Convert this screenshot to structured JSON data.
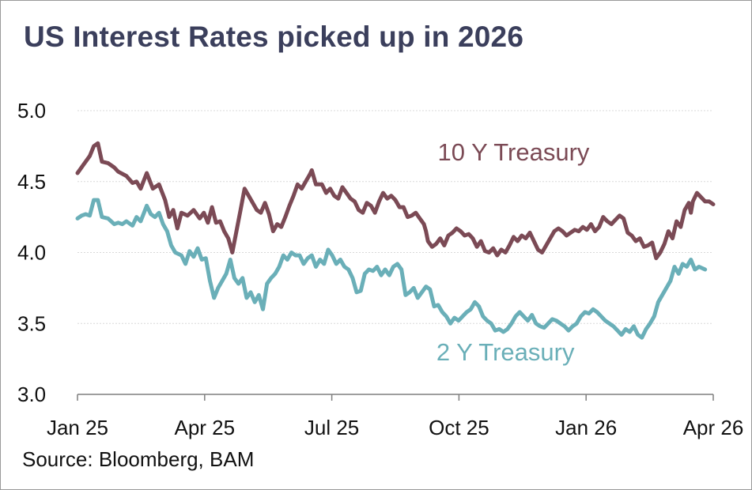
{
  "title": "US Interest Rates picked up in 2026",
  "source": "Source: Bloomberg, BAM",
  "chart_data": {
    "type": "line",
    "title": "US Interest Rates picked up in 2026",
    "xlabel": "",
    "ylabel": "",
    "ylim": [
      3.0,
      5.0
    ],
    "yticks": [
      "3.0",
      "3.5",
      "4.0",
      "4.5",
      "5.0"
    ],
    "xlim": [
      0,
      15
    ],
    "xticks": [
      {
        "label": "Jan 25",
        "x": 0
      },
      {
        "label": "Apr 25",
        "x": 3
      },
      {
        "label": "Jul 25",
        "x": 6
      },
      {
        "label": "Oct 25",
        "x": 9
      },
      {
        "label": "Jan 26",
        "x": 12
      },
      {
        "label": "Apr 26",
        "x": 15
      }
    ],
    "grid": true,
    "series": [
      {
        "name": "10 Y Treasury",
        "color": "#7b4a55",
        "points": [
          [
            0.0,
            4.56
          ],
          [
            0.15,
            4.62
          ],
          [
            0.3,
            4.68
          ],
          [
            0.4,
            4.75
          ],
          [
            0.5,
            4.77
          ],
          [
            0.6,
            4.64
          ],
          [
            0.75,
            4.63
          ],
          [
            0.9,
            4.6
          ],
          [
            1.0,
            4.57
          ],
          [
            1.2,
            4.54
          ],
          [
            1.35,
            4.49
          ],
          [
            1.45,
            4.5
          ],
          [
            1.55,
            4.45
          ],
          [
            1.7,
            4.56
          ],
          [
            1.85,
            4.45
          ],
          [
            2.0,
            4.48
          ],
          [
            2.15,
            4.37
          ],
          [
            2.25,
            4.25
          ],
          [
            2.35,
            4.3
          ],
          [
            2.45,
            4.17
          ],
          [
            2.55,
            4.28
          ],
          [
            2.7,
            4.26
          ],
          [
            2.85,
            4.3
          ],
          [
            3.0,
            4.24
          ],
          [
            3.1,
            4.28
          ],
          [
            3.2,
            4.21
          ],
          [
            3.3,
            4.32
          ],
          [
            3.4,
            4.21
          ],
          [
            3.5,
            4.22
          ],
          [
            3.6,
            4.15
          ],
          [
            3.7,
            4.1
          ],
          [
            3.8,
            4.0
          ],
          [
            3.9,
            4.15
          ],
          [
            4.0,
            4.3
          ],
          [
            4.1,
            4.45
          ],
          [
            4.2,
            4.4
          ],
          [
            4.3,
            4.35
          ],
          [
            4.4,
            4.3
          ],
          [
            4.5,
            4.28
          ],
          [
            4.6,
            4.35
          ],
          [
            4.7,
            4.27
          ],
          [
            4.8,
            4.15
          ],
          [
            4.9,
            4.2
          ],
          [
            5.0,
            4.18
          ],
          [
            5.1,
            4.25
          ],
          [
            5.2,
            4.33
          ],
          [
            5.3,
            4.4
          ],
          [
            5.4,
            4.48
          ],
          [
            5.5,
            4.45
          ],
          [
            5.6,
            4.5
          ],
          [
            5.7,
            4.55
          ],
          [
            5.75,
            4.58
          ],
          [
            5.85,
            4.48
          ],
          [
            6.0,
            4.48
          ],
          [
            6.1,
            4.42
          ],
          [
            6.2,
            4.45
          ],
          [
            6.3,
            4.4
          ],
          [
            6.4,
            4.38
          ],
          [
            6.5,
            4.46
          ],
          [
            6.6,
            4.42
          ],
          [
            6.7,
            4.38
          ],
          [
            6.8,
            4.36
          ],
          [
            6.9,
            4.3
          ],
          [
            7.0,
            4.28
          ],
          [
            7.1,
            4.35
          ],
          [
            7.2,
            4.33
          ],
          [
            7.3,
            4.28
          ],
          [
            7.4,
            4.36
          ],
          [
            7.5,
            4.42
          ],
          [
            7.6,
            4.38
          ],
          [
            7.7,
            4.4
          ],
          [
            7.8,
            4.37
          ],
          [
            7.9,
            4.32
          ],
          [
            8.0,
            4.32
          ],
          [
            8.1,
            4.25
          ],
          [
            8.2,
            4.26
          ],
          [
            8.3,
            4.28
          ],
          [
            8.4,
            4.24
          ],
          [
            8.5,
            4.2
          ],
          [
            8.55,
            4.15
          ],
          [
            8.6,
            4.08
          ],
          [
            8.7,
            4.04
          ],
          [
            8.8,
            4.06
          ],
          [
            8.9,
            4.1
          ],
          [
            9.0,
            4.05
          ],
          [
            9.1,
            4.12
          ],
          [
            9.2,
            4.14
          ],
          [
            9.3,
            4.17
          ],
          [
            9.4,
            4.15
          ],
          [
            9.5,
            4.12
          ],
          [
            9.6,
            4.13
          ],
          [
            9.7,
            4.1
          ],
          [
            9.8,
            4.04
          ],
          [
            9.9,
            4.08
          ],
          [
            10.0,
            4.01
          ],
          [
            10.1,
            4.0
          ],
          [
            10.2,
            4.03
          ],
          [
            10.3,
            3.98
          ],
          [
            10.4,
            4.02
          ],
          [
            10.5,
            4.0
          ],
          [
            10.6,
            4.05
          ],
          [
            10.7,
            4.11
          ],
          [
            10.8,
            4.08
          ],
          [
            10.9,
            4.12
          ],
          [
            11.0,
            4.1
          ],
          [
            11.1,
            4.14
          ],
          [
            11.2,
            4.08
          ],
          [
            11.3,
            4.02
          ],
          [
            11.4,
            4.0
          ],
          [
            11.5,
            4.05
          ],
          [
            11.6,
            4.1
          ],
          [
            11.7,
            4.15
          ],
          [
            11.8,
            4.17
          ],
          [
            11.9,
            4.15
          ],
          [
            12.0,
            4.12
          ],
          [
            12.1,
            4.14
          ],
          [
            12.2,
            4.16
          ],
          [
            12.3,
            4.15
          ],
          [
            12.4,
            4.18
          ],
          [
            12.5,
            4.16
          ],
          [
            12.6,
            4.2
          ],
          [
            12.7,
            4.15
          ],
          [
            12.8,
            4.18
          ],
          [
            12.9,
            4.25
          ],
          [
            13.0,
            4.22
          ],
          [
            13.1,
            4.2
          ],
          [
            13.2,
            4.23
          ],
          [
            13.3,
            4.26
          ],
          [
            13.4,
            4.24
          ],
          [
            13.5,
            4.14
          ],
          [
            13.6,
            4.12
          ],
          [
            13.7,
            4.08
          ],
          [
            13.8,
            4.1
          ],
          [
            13.9,
            4.04
          ],
          [
            14.0,
            4.05
          ],
          [
            14.1,
            4.07
          ],
          [
            14.2,
            3.96
          ],
          [
            14.3,
            4.0
          ],
          [
            14.4,
            4.06
          ],
          [
            14.5,
            4.15
          ],
          [
            14.6,
            4.1
          ],
          [
            14.7,
            4.22
          ],
          [
            14.8,
            4.18
          ],
          [
            14.9,
            4.3
          ],
          [
            15.0,
            4.35
          ],
          [
            15.05,
            4.28
          ],
          [
            15.1,
            4.36
          ],
          [
            15.2,
            4.42
          ],
          [
            15.3,
            4.39
          ],
          [
            15.4,
            4.36
          ],
          [
            15.5,
            4.36
          ],
          [
            15.6,
            4.34
          ]
        ]
      },
      {
        "name": "2 Y Treasury",
        "color": "#6aafb8",
        "points": [
          [
            0.0,
            4.24
          ],
          [
            0.1,
            4.26
          ],
          [
            0.2,
            4.27
          ],
          [
            0.3,
            4.26
          ],
          [
            0.4,
            4.37
          ],
          [
            0.5,
            4.37
          ],
          [
            0.6,
            4.25
          ],
          [
            0.75,
            4.24
          ],
          [
            0.9,
            4.2
          ],
          [
            1.0,
            4.21
          ],
          [
            1.1,
            4.2
          ],
          [
            1.2,
            4.22
          ],
          [
            1.35,
            4.19
          ],
          [
            1.45,
            4.25
          ],
          [
            1.55,
            4.22
          ],
          [
            1.7,
            4.33
          ],
          [
            1.8,
            4.27
          ],
          [
            1.9,
            4.25
          ],
          [
            2.0,
            4.28
          ],
          [
            2.1,
            4.2
          ],
          [
            2.2,
            4.15
          ],
          [
            2.3,
            4.05
          ],
          [
            2.4,
            4.0
          ],
          [
            2.55,
            3.98
          ],
          [
            2.65,
            3.92
          ],
          [
            2.75,
            4.01
          ],
          [
            2.85,
            3.97
          ],
          [
            2.95,
            4.03
          ],
          [
            3.05,
            3.95
          ],
          [
            3.15,
            3.96
          ],
          [
            3.25,
            3.8
          ],
          [
            3.35,
            3.68
          ],
          [
            3.45,
            3.75
          ],
          [
            3.55,
            3.8
          ],
          [
            3.65,
            3.85
          ],
          [
            3.75,
            3.95
          ],
          [
            3.85,
            3.82
          ],
          [
            3.95,
            3.78
          ],
          [
            4.05,
            3.82
          ],
          [
            4.15,
            3.68
          ],
          [
            4.25,
            3.72
          ],
          [
            4.35,
            3.65
          ],
          [
            4.45,
            3.7
          ],
          [
            4.55,
            3.6
          ],
          [
            4.65,
            3.78
          ],
          [
            4.75,
            3.82
          ],
          [
            4.85,
            3.85
          ],
          [
            4.95,
            3.9
          ],
          [
            5.05,
            3.98
          ],
          [
            5.15,
            3.95
          ],
          [
            5.25,
            4.0
          ],
          [
            5.35,
            3.98
          ],
          [
            5.45,
            3.98
          ],
          [
            5.55,
            3.92
          ],
          [
            5.65,
            3.96
          ],
          [
            5.75,
            3.98
          ],
          [
            5.85,
            3.9
          ],
          [
            5.95,
            3.95
          ],
          [
            6.05,
            3.92
          ],
          [
            6.15,
            4.02
          ],
          [
            6.25,
            3.98
          ],
          [
            6.35,
            3.92
          ],
          [
            6.45,
            3.95
          ],
          [
            6.55,
            3.9
          ],
          [
            6.65,
            3.88
          ],
          [
            6.75,
            3.82
          ],
          [
            6.85,
            3.72
          ],
          [
            6.95,
            3.73
          ],
          [
            7.05,
            3.85
          ],
          [
            7.15,
            3.88
          ],
          [
            7.25,
            3.87
          ],
          [
            7.35,
            3.9
          ],
          [
            7.45,
            3.84
          ],
          [
            7.55,
            3.88
          ],
          [
            7.65,
            3.84
          ],
          [
            7.75,
            3.9
          ],
          [
            7.85,
            3.92
          ],
          [
            7.95,
            3.88
          ],
          [
            8.05,
            3.7
          ],
          [
            8.15,
            3.72
          ],
          [
            8.25,
            3.75
          ],
          [
            8.35,
            3.68
          ],
          [
            8.45,
            3.72
          ],
          [
            8.55,
            3.76
          ],
          [
            8.65,
            3.74
          ],
          [
            8.75,
            3.62
          ],
          [
            8.85,
            3.63
          ],
          [
            8.95,
            3.58
          ],
          [
            9.05,
            3.55
          ],
          [
            9.15,
            3.5
          ],
          [
            9.25,
            3.54
          ],
          [
            9.35,
            3.52
          ],
          [
            9.45,
            3.55
          ],
          [
            9.55,
            3.58
          ],
          [
            9.65,
            3.6
          ],
          [
            9.75,
            3.65
          ],
          [
            9.85,
            3.62
          ],
          [
            9.95,
            3.55
          ],
          [
            10.05,
            3.52
          ],
          [
            10.15,
            3.5
          ],
          [
            10.25,
            3.45
          ],
          [
            10.35,
            3.46
          ],
          [
            10.45,
            3.44
          ],
          [
            10.55,
            3.46
          ],
          [
            10.65,
            3.5
          ],
          [
            10.75,
            3.55
          ],
          [
            10.85,
            3.58
          ],
          [
            10.95,
            3.55
          ],
          [
            11.05,
            3.52
          ],
          [
            11.15,
            3.56
          ],
          [
            11.25,
            3.5
          ],
          [
            11.35,
            3.48
          ],
          [
            11.45,
            3.47
          ],
          [
            11.55,
            3.5
          ],
          [
            11.65,
            3.53
          ],
          [
            11.75,
            3.52
          ],
          [
            11.85,
            3.5
          ],
          [
            11.95,
            3.48
          ],
          [
            12.05,
            3.45
          ],
          [
            12.15,
            3.48
          ],
          [
            12.25,
            3.5
          ],
          [
            12.35,
            3.55
          ],
          [
            12.45,
            3.58
          ],
          [
            12.55,
            3.57
          ],
          [
            12.65,
            3.6
          ],
          [
            12.75,
            3.58
          ],
          [
            12.85,
            3.55
          ],
          [
            12.95,
            3.52
          ],
          [
            13.05,
            3.5
          ],
          [
            13.15,
            3.48
          ],
          [
            13.25,
            3.45
          ],
          [
            13.35,
            3.42
          ],
          [
            13.45,
            3.46
          ],
          [
            13.55,
            3.44
          ],
          [
            13.65,
            3.48
          ],
          [
            13.75,
            3.42
          ],
          [
            13.85,
            3.4
          ],
          [
            13.95,
            3.46
          ],
          [
            14.05,
            3.5
          ],
          [
            14.15,
            3.55
          ],
          [
            14.25,
            3.65
          ],
          [
            14.35,
            3.7
          ],
          [
            14.45,
            3.75
          ],
          [
            14.55,
            3.8
          ],
          [
            14.65,
            3.9
          ],
          [
            14.75,
            3.85
          ],
          [
            14.85,
            3.92
          ],
          [
            14.95,
            3.9
          ],
          [
            15.05,
            3.95
          ],
          [
            15.15,
            3.88
          ],
          [
            15.25,
            3.9
          ],
          [
            15.4,
            3.88
          ]
        ]
      }
    ],
    "annotations": [
      {
        "text": "10 Y Treasury",
        "series": "10 Y Treasury",
        "x": 10.7,
        "y": 4.65
      },
      {
        "text": "2 Y Treasury",
        "series": "2 Y Treasury",
        "x": 10.5,
        "y": 3.24
      }
    ]
  }
}
